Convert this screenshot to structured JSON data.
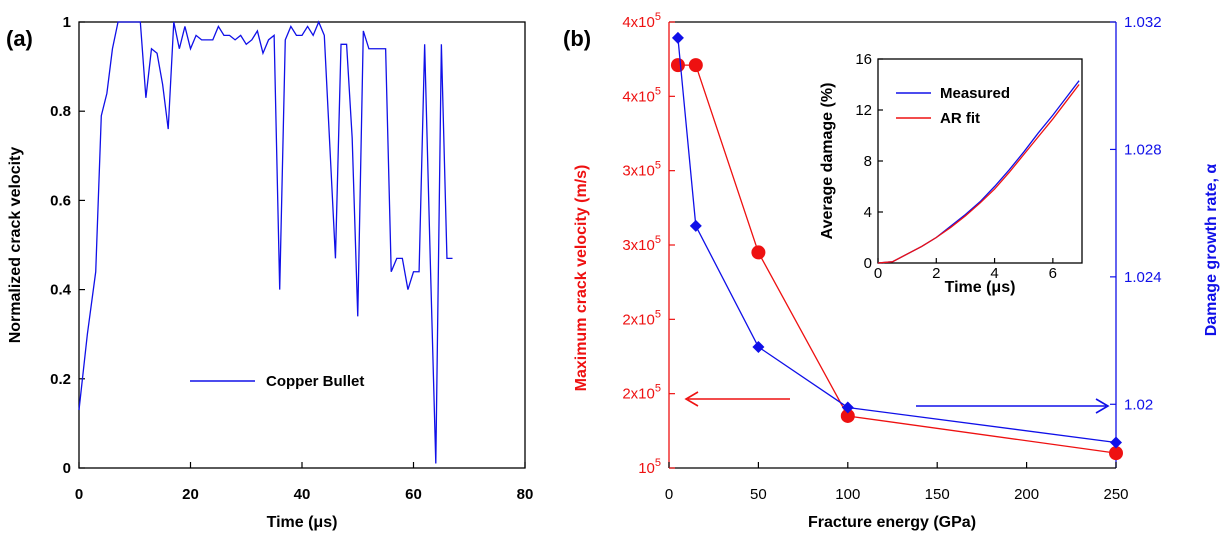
{
  "colors": {
    "blue": "#1010e8",
    "red": "#ee1111",
    "black": "#000000"
  },
  "chart_data": [
    {
      "panel_label": "(a)",
      "type": "line",
      "xlabel": "Time (μs)",
      "ylabel": "Normalized crack velocity",
      "xlim": [
        0,
        80
      ],
      "ylim": [
        0,
        1
      ],
      "xticks": [
        "0",
        "20",
        "40",
        "60",
        "80"
      ],
      "yticks": [
        "0",
        "0.2",
        "0.4",
        "0.6",
        "0.8",
        "1"
      ],
      "legend_position": "lower-right",
      "series": [
        {
          "name": "Copper Bullet",
          "color": "#1010e8",
          "x": [
            0,
            1.5,
            3,
            4,
            5,
            6,
            7,
            8,
            9,
            10,
            11,
            12,
            13,
            14,
            15,
            16,
            17,
            18,
            19,
            20,
            21,
            22,
            23,
            24,
            25,
            26,
            27,
            28,
            29,
            30,
            31,
            32,
            33,
            34,
            35,
            36,
            37,
            38,
            39,
            40,
            41,
            42,
            43,
            44,
            45,
            46,
            47,
            48,
            49,
            50,
            51,
            52,
            53,
            54,
            55,
            56,
            57,
            58,
            59,
            60,
            61,
            62,
            63,
            64,
            65,
            66,
            67
          ],
          "y": [
            0.13,
            0.3,
            0.44,
            0.79,
            0.84,
            0.94,
            1.0,
            1.0,
            1.0,
            1.0,
            1.0,
            0.83,
            0.94,
            0.93,
            0.86,
            0.76,
            1.0,
            0.94,
            0.99,
            0.94,
            0.97,
            0.96,
            0.96,
            0.96,
            0.99,
            0.97,
            0.97,
            0.96,
            0.97,
            0.95,
            0.96,
            0.98,
            0.93,
            0.96,
            0.97,
            0.4,
            0.96,
            0.99,
            0.97,
            0.97,
            0.99,
            0.97,
            1.0,
            0.97,
            0.72,
            0.47,
            0.95,
            0.95,
            0.74,
            0.34,
            0.98,
            0.94,
            0.94,
            0.94,
            0.94,
            0.44,
            0.47,
            0.47,
            0.4,
            0.44,
            0.44,
            0.95,
            0.47,
            0.01,
            0.95,
            0.47,
            0.47
          ]
        }
      ]
    },
    {
      "panel_label": "(b)",
      "type": "line",
      "xlabel": "Fracture energy (GPa)",
      "ylabel_left": "Maximum crack velocity (m/s)",
      "ylabel_right": "Damage growth rate, α",
      "xlim": [
        0,
        250
      ],
      "xticks": [
        "0",
        "50",
        "100",
        "150",
        "200",
        "250"
      ],
      "ylim_left": [
        100000,
        400000
      ],
      "yticks_left": [
        "10",
        "2x10",
        "2x10",
        "3x10",
        "3x10",
        "4x10",
        "4x10"
      ],
      "ytick_exponent": "5",
      "ylim_right": [
        1.018,
        1.032
      ],
      "yticks_right": [
        "1.02",
        "1.024",
        "1.028",
        "1.032"
      ],
      "series": [
        {
          "axis": "left",
          "color": "#ee1111",
          "marker": "circle",
          "x": [
            5,
            15,
            50,
            100,
            250
          ],
          "y": [
            371000,
            371000,
            245000,
            135000,
            110000
          ]
        },
        {
          "axis": "right",
          "color": "#1010e8",
          "marker": "diamond",
          "x": [
            5,
            15,
            50,
            100,
            250
          ],
          "y": [
            1.0315,
            1.0256,
            1.0218,
            1.0199,
            1.0188
          ]
        }
      ],
      "inset": {
        "type": "line",
        "xlabel": "Time (μs)",
        "ylabel": "Average damage (%)",
        "xlim": [
          0,
          7
        ],
        "ylim": [
          0,
          16
        ],
        "xticks": [
          "0",
          "2",
          "4",
          "6"
        ],
        "yticks": [
          "0",
          "4",
          "8",
          "12",
          "16"
        ],
        "legend_position": "top-left",
        "series": [
          {
            "name": "Measured",
            "color": "#1010e8",
            "x": [
              0,
              0.5,
              1,
              1.5,
              2,
              2.5,
              3,
              3.5,
              4,
              4.5,
              5,
              5.5,
              6,
              6.5,
              6.9
            ],
            "y": [
              0,
              0.1,
              0.7,
              1.3,
              2.0,
              2.9,
              3.8,
              4.8,
              6.0,
              7.3,
              8.7,
              10.2,
              11.6,
              13.1,
              14.3
            ]
          },
          {
            "name": "AR fit",
            "color": "#ee1111",
            "x": [
              0,
              0.5,
              1,
              1.5,
              2,
              2.5,
              3,
              3.5,
              4,
              4.5,
              5,
              5.5,
              6,
              6.5,
              6.9
            ],
            "y": [
              0,
              0.1,
              0.7,
              1.3,
              2.0,
              2.8,
              3.7,
              4.7,
              5.8,
              7.1,
              8.5,
              9.9,
              11.3,
              12.8,
              14.0
            ]
          }
        ]
      }
    }
  ]
}
